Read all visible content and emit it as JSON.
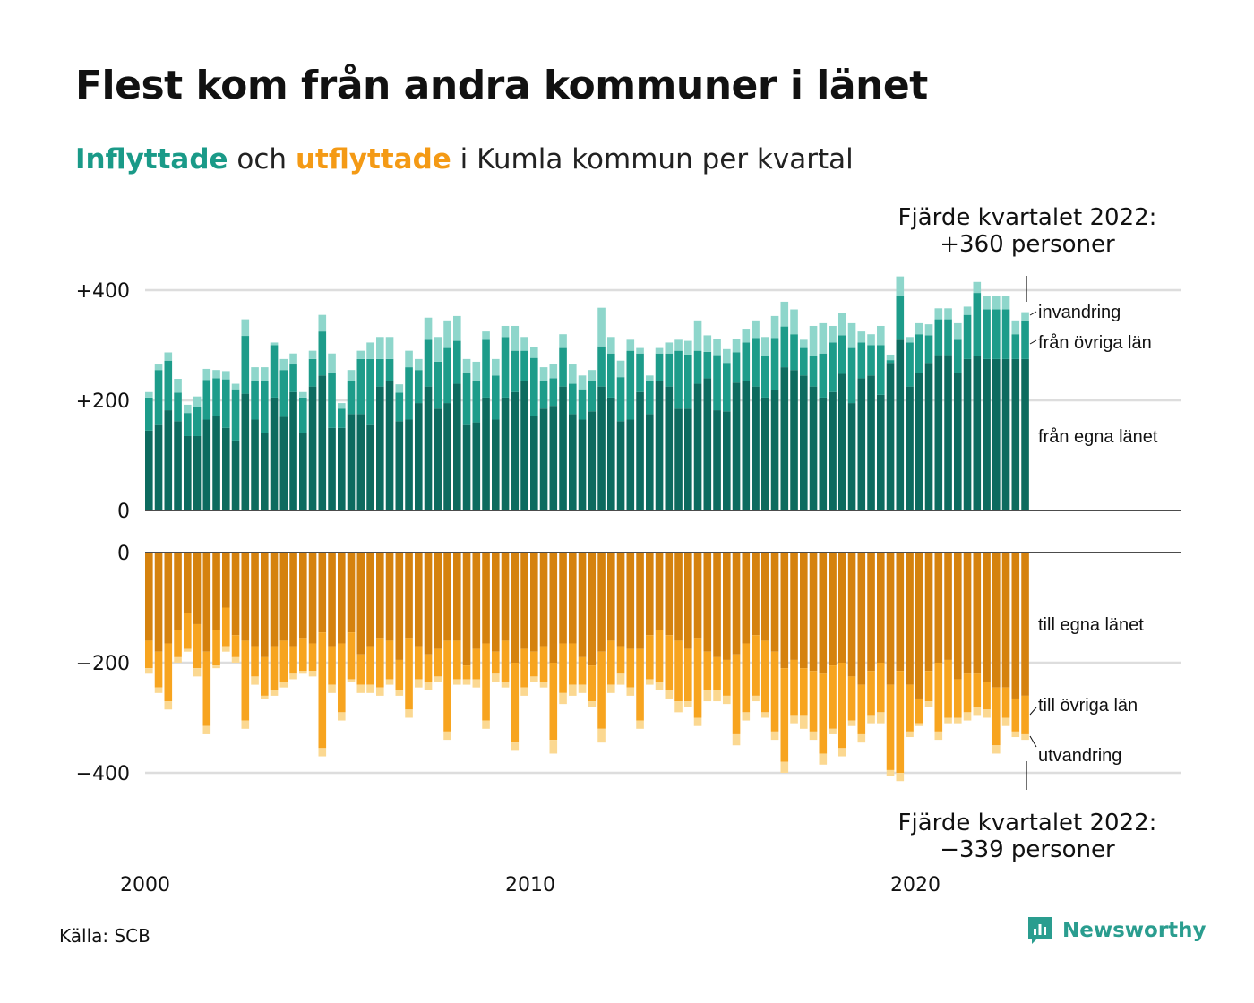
{
  "title": "Flest kom från andra kommuner i länet",
  "subtitle": {
    "in_word": "Inflyttade",
    "mid": " och ",
    "out_word": "utflyttade",
    "rest": " i Kumla kommun per kvartal"
  },
  "source": "Källa: SCB",
  "brand": {
    "name": "Newsworthy",
    "icon": "newsworthy-logo-icon"
  },
  "colors": {
    "in_own": "#0d6b5f",
    "in_other": "#1d9c8a",
    "in_immig": "#8ed6cb",
    "out_own": "#d5820e",
    "out_other": "#f7a41f",
    "out_emig": "#fbd891",
    "grid": "#dddddd",
    "axis": "#111111"
  },
  "annotations": {
    "top_line1": "Fjärde kvartalet 2022:",
    "top_line2": "+360 personer",
    "bottom_line1": "Fjärde kvartalet 2022:",
    "bottom_line2": "−339 personer"
  },
  "chart_data": [
    {
      "type": "bar",
      "stacked": true,
      "panel": "inflyttade",
      "x_start": "2000 Q1",
      "x_end": "2022 Q4",
      "x_ticks": [
        "2000",
        "2010",
        "2020"
      ],
      "y_ticks": [
        "0",
        "+200",
        "+400"
      ],
      "ylim": [
        0,
        420
      ],
      "grid": true,
      "series": [
        {
          "name": "från egna länet",
          "values": [
            145,
            155,
            182,
            162,
            135,
            135,
            165,
            172,
            150,
            127,
            212,
            165,
            140,
            205,
            170,
            215,
            140,
            225,
            245,
            150,
            150,
            175,
            175,
            155,
            225,
            235,
            162,
            165,
            195,
            225,
            185,
            195,
            230,
            155,
            160,
            205,
            165,
            205,
            215,
            235,
            172,
            185,
            190,
            225,
            175,
            165,
            180,
            225,
            205,
            162,
            165,
            215,
            175,
            235,
            225,
            185,
            185,
            230,
            240,
            182,
            180,
            232,
            235,
            225,
            205,
            218,
            260,
            255,
            245,
            225,
            205,
            215,
            248,
            195,
            240,
            245,
            210,
            268,
            310,
            225,
            250,
            268,
            282,
            282,
            250,
            275,
            280,
            275,
            275,
            275,
            275,
            275
          ]
        },
        {
          "name": "från övriga län",
          "values": [
            60,
            100,
            90,
            52,
            42,
            52,
            72,
            68,
            88,
            93,
            105,
            70,
            95,
            95,
            85,
            50,
            65,
            50,
            80,
            100,
            35,
            60,
            100,
            120,
            50,
            40,
            52,
            95,
            60,
            85,
            85,
            100,
            78,
            95,
            75,
            105,
            80,
            110,
            75,
            55,
            105,
            50,
            50,
            70,
            55,
            55,
            55,
            73,
            80,
            80,
            125,
            70,
            60,
            50,
            60,
            105,
            98,
            60,
            48,
            100,
            88,
            55,
            70,
            88,
            75,
            95,
            74,
            65,
            50,
            55,
            80,
            90,
            70,
            100,
            65,
            55,
            90,
            5,
            80,
            80,
            70,
            50,
            65,
            65,
            60,
            80,
            115,
            90,
            90,
            90,
            45,
            70
          ]
        },
        {
          "name": "invandring",
          "values": [
            10,
            10,
            15,
            25,
            15,
            20,
            20,
            15,
            15,
            10,
            30,
            25,
            25,
            5,
            20,
            20,
            10,
            15,
            30,
            35,
            10,
            20,
            15,
            30,
            40,
            40,
            15,
            30,
            20,
            40,
            45,
            50,
            45,
            25,
            35,
            15,
            30,
            20,
            45,
            25,
            20,
            25,
            25,
            25,
            35,
            25,
            20,
            70,
            30,
            30,
            20,
            10,
            10,
            10,
            20,
            20,
            25,
            55,
            30,
            30,
            25,
            25,
            25,
            32,
            35,
            40,
            45,
            45,
            15,
            55,
            55,
            30,
            40,
            45,
            20,
            20,
            35,
            10,
            35,
            10,
            20,
            20,
            20,
            20,
            30,
            15,
            20,
            25,
            25,
            25,
            25,
            15
          ]
        }
      ]
    },
    {
      "type": "bar",
      "stacked": true,
      "panel": "utflyttade",
      "x_start": "2000 Q1",
      "x_end": "2022 Q4",
      "x_ticks": [
        "2000",
        "2010",
        "2020"
      ],
      "y_ticks": [
        "0",
        "−200",
        "−400"
      ],
      "ylim": [
        -420,
        0
      ],
      "grid": true,
      "series": [
        {
          "name": "till egna länet",
          "values": [
            -160,
            -180,
            -165,
            -140,
            -110,
            -130,
            -180,
            -140,
            -100,
            -150,
            -160,
            -170,
            -190,
            -170,
            -160,
            -170,
            -155,
            -165,
            -145,
            -170,
            -165,
            -145,
            -185,
            -170,
            -155,
            -160,
            -195,
            -155,
            -170,
            -185,
            -175,
            -160,
            -160,
            -205,
            -175,
            -165,
            -180,
            -160,
            -200,
            -175,
            -180,
            -170,
            -200,
            -165,
            -165,
            -190,
            -205,
            -180,
            -160,
            -170,
            -175,
            -175,
            -150,
            -140,
            -150,
            -160,
            -175,
            -155,
            -180,
            -190,
            -195,
            -185,
            -165,
            -150,
            -160,
            -180,
            -210,
            -195,
            -210,
            -215,
            -220,
            -205,
            -200,
            -225,
            -240,
            -215,
            -200,
            -240,
            -215,
            -240,
            -265,
            -215,
            -200,
            -195,
            -230,
            -220,
            -220,
            -235,
            -245,
            -245,
            -265,
            -260
          ]
        },
        {
          "name": "till övriga län",
          "values": [
            -50,
            -65,
            -105,
            -50,
            -65,
            -80,
            -135,
            -65,
            -70,
            -40,
            -145,
            -55,
            -70,
            -80,
            -75,
            -50,
            -60,
            -50,
            -210,
            -70,
            -125,
            -85,
            -55,
            -70,
            -90,
            -70,
            -55,
            -130,
            -60,
            -50,
            -50,
            -165,
            -70,
            -25,
            -55,
            -140,
            -40,
            -75,
            -145,
            -70,
            -45,
            -65,
            -140,
            -90,
            -75,
            -50,
            -65,
            -140,
            -80,
            -50,
            -70,
            -130,
            -80,
            -95,
            -100,
            -110,
            -95,
            -145,
            -70,
            -60,
            -65,
            -145,
            -125,
            -110,
            -130,
            -145,
            -170,
            -100,
            -85,
            -110,
            -145,
            -115,
            -155,
            -80,
            -90,
            -80,
            -90,
            -155,
            -185,
            -85,
            -45,
            -55,
            -125,
            -105,
            -70,
            -70,
            -60,
            -50,
            -105,
            -55,
            -60,
            -70
          ]
        },
        {
          "name": "utvandring",
          "values": [
            -10,
            -10,
            -15,
            -10,
            -5,
            -15,
            -15,
            -5,
            -10,
            -10,
            -15,
            -15,
            -5,
            -10,
            -10,
            -10,
            -5,
            -10,
            -15,
            -15,
            -15,
            -5,
            -15,
            -15,
            -15,
            -10,
            -10,
            -15,
            -15,
            -15,
            -10,
            -15,
            -10,
            -10,
            -15,
            -15,
            -15,
            -10,
            -15,
            -15,
            -10,
            -10,
            -25,
            -20,
            -20,
            -15,
            -10,
            -25,
            -15,
            -20,
            -15,
            -15,
            -10,
            -15,
            -15,
            -20,
            -10,
            -15,
            -20,
            -20,
            -15,
            -20,
            -15,
            -10,
            -10,
            -15,
            -20,
            -15,
            -25,
            -15,
            -20,
            -10,
            -15,
            -10,
            -15,
            -15,
            -20,
            -10,
            -15,
            -10,
            -5,
            -10,
            -15,
            -10,
            -10,
            -15,
            -15,
            -15,
            -15,
            -15,
            -10,
            -10
          ]
        }
      ]
    }
  ]
}
